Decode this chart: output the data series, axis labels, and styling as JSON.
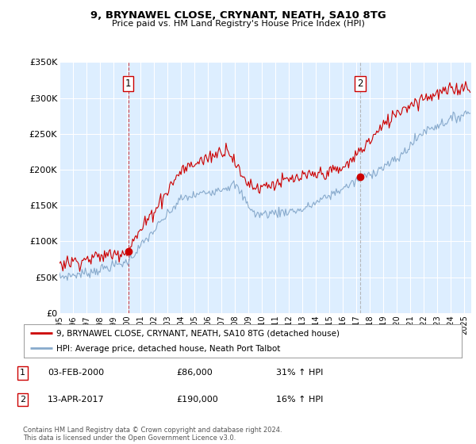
{
  "title": "9, BRYNAWEL CLOSE, CRYNANT, NEATH, SA10 8TG",
  "subtitle": "Price paid vs. HM Land Registry's House Price Index (HPI)",
  "legend_line1": "9, BRYNAWEL CLOSE, CRYNANT, NEATH, SA10 8TG (detached house)",
  "legend_line2": "HPI: Average price, detached house, Neath Port Talbot",
  "annotation1_date": "03-FEB-2000",
  "annotation1_price": "£86,000",
  "annotation1_hpi": "31% ↑ HPI",
  "annotation2_date": "13-APR-2017",
  "annotation2_price": "£190,000",
  "annotation2_hpi": "16% ↑ HPI",
  "footer": "Contains HM Land Registry data © Crown copyright and database right 2024.\nThis data is licensed under the Open Government Licence v3.0.",
  "sale1_year": 2000.09,
  "sale1_price": 86000,
  "sale2_year": 2017.27,
  "sale2_price": 190000,
  "vline1_x": 2000.09,
  "vline2_x": 2017.27,
  "xmin": 1995.0,
  "xmax": 2025.5,
  "ymin": 0,
  "ymax": 350000,
  "chart_bg": "#ddeeff",
  "grid_color": "#ffffff",
  "red_line_color": "#cc0000",
  "blue_line_color": "#88aacc",
  "vline1_color": "#cc0000",
  "vline2_color": "#aaaaaa",
  "yticks": [
    0,
    50000,
    100000,
    150000,
    200000,
    250000,
    300000,
    350000
  ],
  "ylabels": [
    "£0",
    "£50K",
    "£100K",
    "£150K",
    "£200K",
    "£250K",
    "£300K",
    "£350K"
  ]
}
